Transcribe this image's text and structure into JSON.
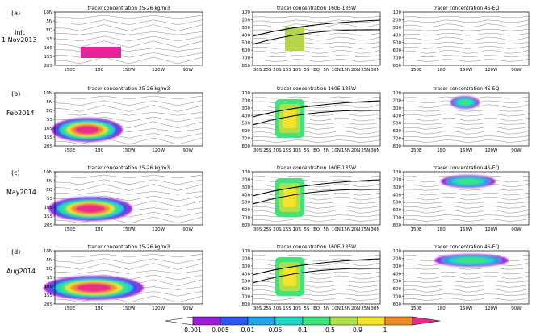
{
  "figure": {
    "rows": [
      {
        "panel": "(a)",
        "label_lines": [
          "Init",
          "1 Nov2013"
        ]
      },
      {
        "panel": "(b)",
        "label_lines": [
          "Feb2014"
        ]
      },
      {
        "panel": "(c)",
        "label_lines": [
          "May2014"
        ]
      },
      {
        "panel": "(d)",
        "label_lines": [
          "Aug2014"
        ]
      }
    ],
    "columns": [
      {
        "title": "tracer concentration 25-26 kg/m3",
        "kind": "map"
      },
      {
        "title": "tracer concentration 160E-135W",
        "kind": "lat-depth"
      },
      {
        "title": "tracer concentration 4S-EQ",
        "kind": "lon-depth"
      }
    ],
    "map_axes": {
      "y_ticks": [
        "10N",
        "5N",
        "EQ",
        "5S",
        "10S",
        "15S",
        "20S"
      ],
      "x_ticks": [
        "150E",
        "180",
        "150W",
        "120W",
        "90W"
      ]
    },
    "lat_depth_axes": {
      "y_ticks": [
        "100",
        "200",
        "300",
        "400",
        "500",
        "600",
        "700",
        "800"
      ],
      "x_ticks": [
        "30S",
        "25S",
        "20S",
        "15S",
        "10S",
        "5S",
        "EQ",
        "5N",
        "10N",
        "15N",
        "20N",
        "25N",
        "30N"
      ]
    },
    "lon_depth_axes": {
      "y_ticks": [
        "100",
        "200",
        "300",
        "400",
        "500",
        "600",
        "700",
        "800"
      ],
      "x_ticks": [
        "150E",
        "180",
        "150W",
        "120W",
        "90W"
      ]
    },
    "colorbar": {
      "ticks": [
        "0.001",
        "0.005",
        "0.01",
        "0.05",
        "0.1",
        "0.5",
        "0.9",
        "1"
      ],
      "colors": [
        "#ffffff",
        "#9b1dd8",
        "#2f56f0",
        "#1fa5e8",
        "#22d8c8",
        "#40e47a",
        "#aee04a",
        "#f4e32a",
        "#f08a28",
        "#ea2a8a"
      ]
    }
  },
  "chart_data": [
    {
      "type": "heatmap",
      "panel": "(a)",
      "title": "tracer concentration 25-26 kg/m3",
      "variable": "tracer concentration",
      "domain": "isopycnal 25-26 kg/m3, lon 140E-80W, lat 20S-10N",
      "tracer_patch": {
        "lon": [
          "165E",
          "150W"
        ],
        "lat": [
          "15S",
          "10S"
        ],
        "value": 1
      }
    },
    {
      "type": "heatmap",
      "panel": "(a)",
      "title": "tracer concentration 160E-135W",
      "variable": "tracer concentration",
      "domain": "lat 30S-30N, depth 0-800",
      "tracer_patch": {
        "lat": [
          "20S",
          "10S"
        ],
        "depth": [
          200,
          450
        ],
        "value": 0.9
      }
    },
    {
      "type": "heatmap",
      "panel": "(a)",
      "title": "tracer concentration 4S-EQ",
      "variable": "tracer concentration",
      "domain": "lon 140E-80W, depth 0-800",
      "tracer_patch": null
    },
    {
      "type": "heatmap",
      "panel": "(b)",
      "title": "tracer concentration 25-26 kg/m3",
      "tracer_extent": {
        "lon": [
          "145E",
          "145W"
        ],
        "lat": [
          "20S",
          "5S"
        ],
        "max_value": 1
      }
    },
    {
      "type": "heatmap",
      "panel": "(b)",
      "title": "tracer concentration 160E-135W",
      "tracer_extent": {
        "lat": [
          "20S",
          "EQ"
        ],
        "depth": [
          100,
          500
        ],
        "max_value": 1
      }
    },
    {
      "type": "heatmap",
      "panel": "(b)",
      "title": "tracer concentration 4S-EQ",
      "tracer_extent": {
        "lon": [
          "170W",
          "150W"
        ],
        "depth": [
          60,
          220
        ],
        "max_value": 0.1
      }
    },
    {
      "type": "heatmap",
      "panel": "(c)",
      "title": "tracer concentration 25-26 kg/m3",
      "tracer_extent": {
        "lon": [
          "145E",
          "120W"
        ],
        "lat": [
          "20S",
          "EQ"
        ],
        "max_value": 0.9
      }
    },
    {
      "type": "heatmap",
      "panel": "(c)",
      "title": "tracer concentration 160E-135W",
      "tracer_extent": {
        "lat": [
          "20S",
          "EQ"
        ],
        "depth": [
          80,
          550
        ],
        "max_value": 0.5
      }
    },
    {
      "type": "heatmap",
      "panel": "(c)",
      "title": "tracer concentration 4S-EQ",
      "tracer_extent": {
        "lon": [
          "170W",
          "95W"
        ],
        "depth": [
          60,
          280
        ],
        "max_value": 0.1
      }
    },
    {
      "type": "heatmap",
      "panel": "(d)",
      "title": "tracer concentration 25-26 kg/m3",
      "tracer_extent": {
        "lon": [
          "145E",
          "110W"
        ],
        "lat": [
          "20S",
          "5N"
        ],
        "max_value": 0.9
      }
    },
    {
      "type": "heatmap",
      "panel": "(d)",
      "title": "tracer concentration 160E-135W",
      "tracer_extent": {
        "lat": [
          "20S",
          "EQ"
        ],
        "depth": [
          50,
          600
        ],
        "max_value": 0.5
      }
    },
    {
      "type": "heatmap",
      "panel": "(d)",
      "title": "tracer concentration 4S-EQ",
      "tracer_extent": {
        "lon": [
          "150E",
          "85W"
        ],
        "depth": [
          60,
          300
        ],
        "max_value": 0.1
      }
    }
  ]
}
